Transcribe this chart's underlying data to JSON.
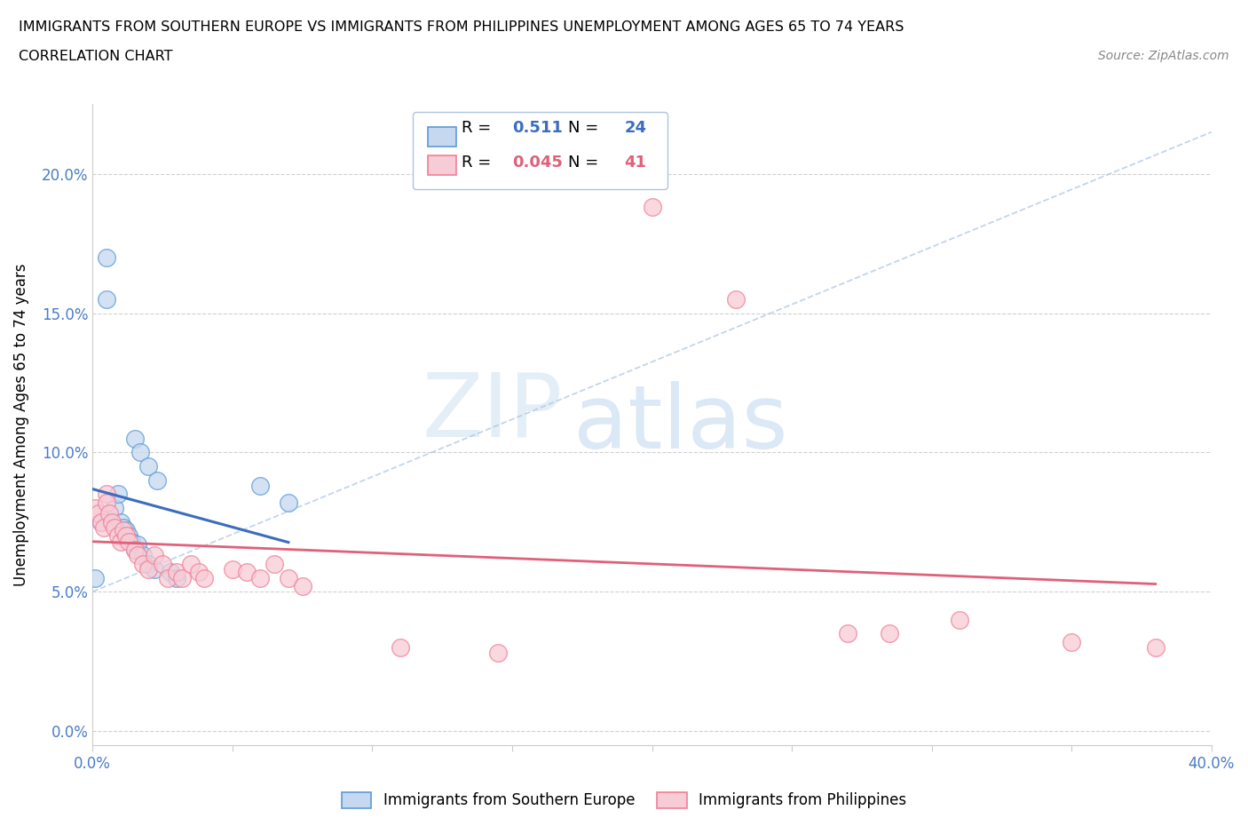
{
  "title_line1": "IMMIGRANTS FROM SOUTHERN EUROPE VS IMMIGRANTS FROM PHILIPPINES UNEMPLOYMENT AMONG AGES 65 TO 74 YEARS",
  "title_line2": "CORRELATION CHART",
  "source_text": "Source: ZipAtlas.com",
  "ylabel": "Unemployment Among Ages 65 to 74 years",
  "watermark_zip": "ZIP",
  "watermark_atlas": "atlas",
  "r_blue": 0.511,
  "n_blue": 24,
  "r_pink": 0.045,
  "n_pink": 41,
  "blue_fill": "#c5d8f0",
  "pink_fill": "#f7ccd6",
  "blue_edge": "#5b9bd5",
  "pink_edge": "#f08098",
  "blue_line": "#3b6dbf",
  "pink_line": "#e0607a",
  "dash_line": "#aac4e0",
  "blue_scatter": [
    [
      0.005,
      0.17
    ],
    [
      0.005,
      0.155
    ],
    [
      0.015,
      0.105
    ],
    [
      0.017,
      0.1
    ],
    [
      0.02,
      0.095
    ],
    [
      0.023,
      0.09
    ],
    [
      0.003,
      0.075
    ],
    [
      0.008,
      0.08
    ],
    [
      0.009,
      0.085
    ],
    [
      0.01,
      0.075
    ],
    [
      0.011,
      0.073
    ],
    [
      0.012,
      0.072
    ],
    [
      0.013,
      0.07
    ],
    [
      0.014,
      0.068
    ],
    [
      0.015,
      0.065
    ],
    [
      0.016,
      0.067
    ],
    [
      0.018,
      0.063
    ],
    [
      0.02,
      0.06
    ],
    [
      0.022,
      0.058
    ],
    [
      0.028,
      0.057
    ],
    [
      0.03,
      0.055
    ],
    [
      0.06,
      0.088
    ],
    [
      0.07,
      0.082
    ],
    [
      0.001,
      0.055
    ]
  ],
  "pink_scatter": [
    [
      0.001,
      0.08
    ],
    [
      0.002,
      0.078
    ],
    [
      0.003,
      0.075
    ],
    [
      0.004,
      0.073
    ],
    [
      0.005,
      0.085
    ],
    [
      0.005,
      0.082
    ],
    [
      0.006,
      0.078
    ],
    [
      0.007,
      0.075
    ],
    [
      0.008,
      0.073
    ],
    [
      0.009,
      0.07
    ],
    [
      0.01,
      0.068
    ],
    [
      0.011,
      0.072
    ],
    [
      0.012,
      0.07
    ],
    [
      0.013,
      0.068
    ],
    [
      0.015,
      0.065
    ],
    [
      0.016,
      0.063
    ],
    [
      0.018,
      0.06
    ],
    [
      0.02,
      0.058
    ],
    [
      0.022,
      0.063
    ],
    [
      0.025,
      0.06
    ],
    [
      0.027,
      0.055
    ],
    [
      0.03,
      0.057
    ],
    [
      0.032,
      0.055
    ],
    [
      0.035,
      0.06
    ],
    [
      0.038,
      0.057
    ],
    [
      0.04,
      0.055
    ],
    [
      0.05,
      0.058
    ],
    [
      0.055,
      0.057
    ],
    [
      0.06,
      0.055
    ],
    [
      0.065,
      0.06
    ],
    [
      0.07,
      0.055
    ],
    [
      0.075,
      0.052
    ],
    [
      0.11,
      0.03
    ],
    [
      0.145,
      0.028
    ],
    [
      0.2,
      0.188
    ],
    [
      0.23,
      0.155
    ],
    [
      0.27,
      0.035
    ],
    [
      0.285,
      0.035
    ],
    [
      0.31,
      0.04
    ],
    [
      0.35,
      0.032
    ],
    [
      0.38,
      0.03
    ]
  ],
  "xlim": [
    0.0,
    0.4
  ],
  "ylim": [
    -0.005,
    0.225
  ],
  "xticks": [
    0.0,
    0.05,
    0.1,
    0.15,
    0.2,
    0.25,
    0.3,
    0.35,
    0.4
  ],
  "yticks": [
    0.0,
    0.05,
    0.1,
    0.15,
    0.2
  ],
  "background_color": "#ffffff",
  "grid_color": "#d0d0d0"
}
